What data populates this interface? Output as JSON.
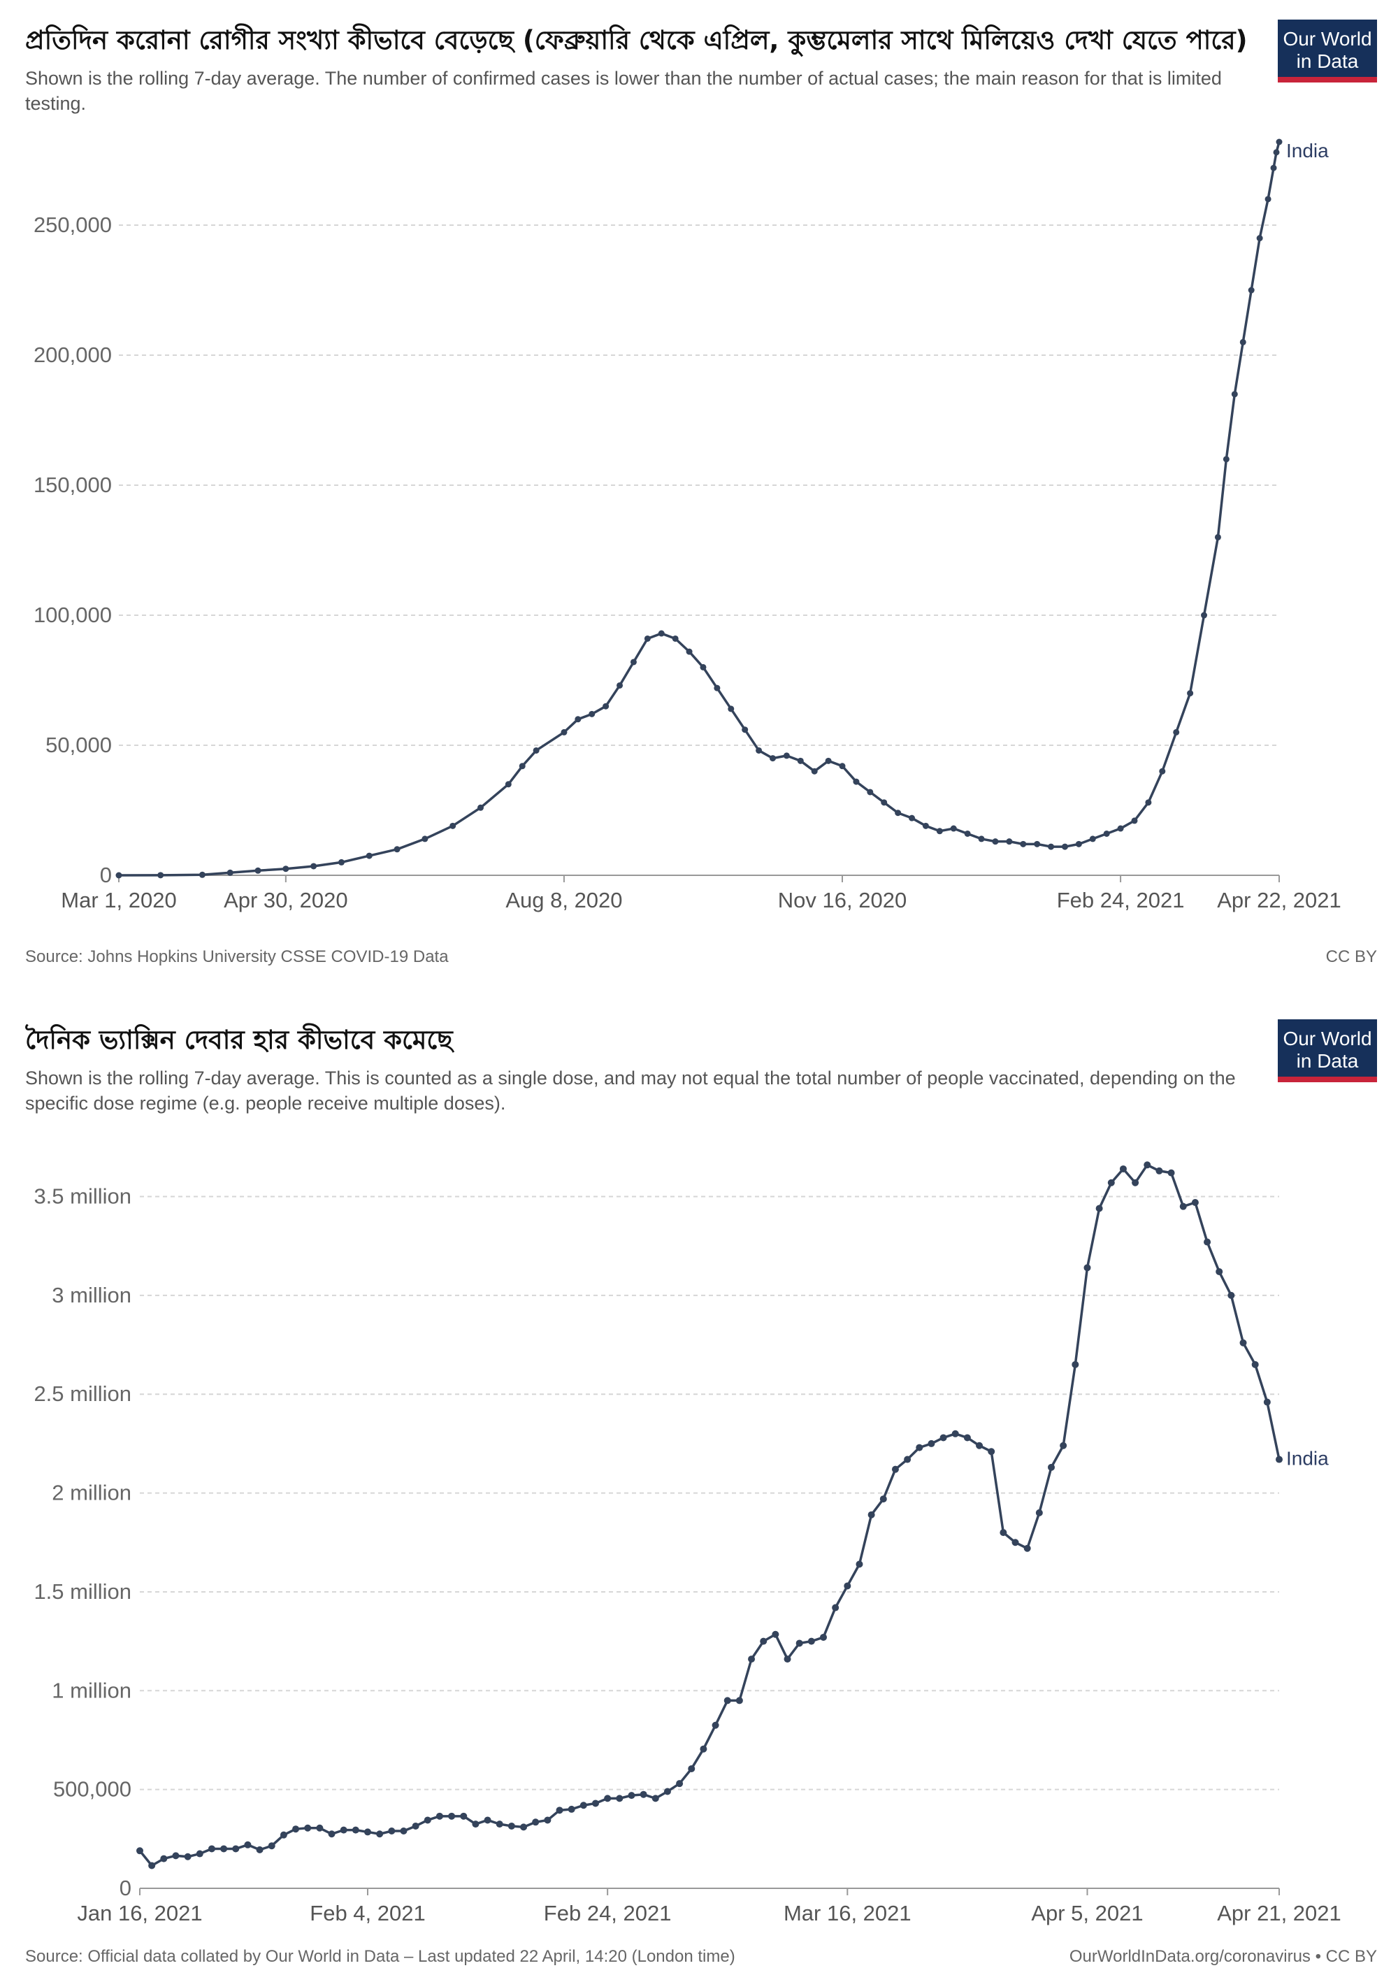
{
  "logo": {
    "line1": "Our World",
    "line2": "in Data"
  },
  "chart_data": [
    {
      "type": "line",
      "title": "প্রতিদিন করোনা রোগীর সংখ্যা কীভাবে বেড়েছে (ফেব্রুয়ারি থেকে এপ্রিল, কুম্ভমেলার সাথে মিলিয়েও দেখা যেতে পারে)",
      "subtitle": "Shown is the rolling 7-day average. The number of confirmed cases is lower than the number of actual cases; the main reason for that is limited testing.",
      "source": "Source: Johns Hopkins University CSSE COVID-19 Data",
      "license": "CC BY",
      "xlabel": "",
      "ylabel": "",
      "ylim": [
        0,
        282000
      ],
      "xlim": [
        0,
        417
      ],
      "yticks": [
        {
          "value": 0,
          "label": "0"
        },
        {
          "value": 50000,
          "label": "50,000"
        },
        {
          "value": 100000,
          "label": "100,000"
        },
        {
          "value": 150000,
          "label": "150,000"
        },
        {
          "value": 200000,
          "label": "200,000"
        },
        {
          "value": 250000,
          "label": "250,000"
        }
      ],
      "xticks": [
        {
          "value": 0,
          "label": "Mar 1, 2020"
        },
        {
          "value": 60,
          "label": "Apr 30, 2020"
        },
        {
          "value": 160,
          "label": "Aug 8, 2020"
        },
        {
          "value": 260,
          "label": "Nov 16, 2020"
        },
        {
          "value": 360,
          "label": "Feb 24, 2021"
        },
        {
          "value": 417,
          "label": "Apr 22, 2021"
        }
      ],
      "series": [
        {
          "name": "India",
          "x": [
            0,
            15,
            30,
            40,
            50,
            60,
            70,
            80,
            90,
            100,
            110,
            120,
            130,
            140,
            145,
            150,
            160,
            165,
            170,
            175,
            180,
            185,
            190,
            195,
            200,
            205,
            210,
            215,
            220,
            225,
            230,
            235,
            240,
            245,
            250,
            255,
            260,
            265,
            270,
            275,
            280,
            285,
            290,
            295,
            300,
            305,
            310,
            315,
            320,
            325,
            330,
            335,
            340,
            345,
            350,
            355,
            360,
            365,
            370,
            375,
            380,
            385,
            390,
            395,
            398,
            401,
            404,
            407,
            410,
            413,
            415,
            416,
            417
          ],
          "values": [
            0,
            50,
            200,
            1000,
            1800,
            2500,
            3500,
            5000,
            7500,
            10000,
            14000,
            19000,
            26000,
            35000,
            42000,
            48000,
            55000,
            60000,
            62000,
            65000,
            73000,
            82000,
            91000,
            93000,
            91000,
            86000,
            80000,
            72000,
            64000,
            56000,
            48000,
            45000,
            46000,
            44000,
            40000,
            44000,
            42000,
            36000,
            32000,
            28000,
            24000,
            22000,
            19000,
            17000,
            18000,
            16000,
            14000,
            13000,
            13000,
            12000,
            12000,
            11000,
            11000,
            12000,
            14000,
            16000,
            18000,
            21000,
            28000,
            40000,
            55000,
            70000,
            100000,
            130000,
            160000,
            185000,
            205000,
            225000,
            245000,
            260000,
            272000,
            278000,
            282000
          ]
        }
      ]
    },
    {
      "type": "line",
      "title": "দৈনিক ভ্যাক্সিন দেবার হার কীভাবে কমেছে",
      "subtitle": "Shown is the rolling 7-day average. This is counted as a single dose, and may not equal the total number of people vaccinated, depending on the specific dose regime (e.g. people receive multiple doses).",
      "source": "Source: Official data collated by Our World in Data – Last updated 22 April, 14:20 (London time)",
      "license": "OurWorldInData.org/coronavirus • CC BY",
      "xlabel": "",
      "ylabel": "",
      "ylim": [
        0,
        3700000
      ],
      "xlim": [
        0,
        95
      ],
      "yticks": [
        {
          "value": 0,
          "label": "0"
        },
        {
          "value": 500000,
          "label": "500,000"
        },
        {
          "value": 1000000,
          "label": "1 million"
        },
        {
          "value": 1500000,
          "label": "1.5 million"
        },
        {
          "value": 2000000,
          "label": "2 million"
        },
        {
          "value": 2500000,
          "label": "2.5 million"
        },
        {
          "value": 3000000,
          "label": "3 million"
        },
        {
          "value": 3500000,
          "label": "3.5 million"
        }
      ],
      "xticks": [
        {
          "value": 0,
          "label": "Jan 16, 2021"
        },
        {
          "value": 19,
          "label": "Feb 4, 2021"
        },
        {
          "value": 39,
          "label": "Feb 24, 2021"
        },
        {
          "value": 59,
          "label": "Mar 16, 2021"
        },
        {
          "value": 79,
          "label": "Apr 5, 2021"
        },
        {
          "value": 95,
          "label": "Apr 21, 2021"
        }
      ],
      "series": [
        {
          "name": "India",
          "x": [
            0,
            1,
            2,
            3,
            4,
            5,
            6,
            7,
            8,
            9,
            10,
            11,
            12,
            13,
            14,
            15,
            16,
            17,
            18,
            19,
            20,
            21,
            22,
            23,
            24,
            25,
            26,
            27,
            28,
            29,
            30,
            31,
            32,
            33,
            34,
            35,
            36,
            37,
            38,
            39,
            40,
            41,
            42,
            43,
            44,
            45,
            46,
            47,
            48,
            49,
            50,
            51,
            52,
            53,
            54,
            55,
            56,
            57,
            58,
            59,
            60,
            61,
            62,
            63,
            64,
            65,
            66,
            67,
            68,
            69,
            70,
            71,
            72,
            73,
            74,
            75,
            76,
            77,
            78,
            79,
            80,
            81,
            82,
            83,
            84,
            85,
            86,
            87,
            88,
            89,
            90,
            91,
            92,
            93,
            94,
            95
          ],
          "values": [
            190000,
            115000,
            150000,
            165000,
            160000,
            175000,
            200000,
            200000,
            200000,
            220000,
            195000,
            215000,
            270000,
            300000,
            305000,
            305000,
            275000,
            295000,
            295000,
            285000,
            275000,
            290000,
            290000,
            315000,
            345000,
            365000,
            365000,
            365000,
            325000,
            345000,
            325000,
            315000,
            310000,
            335000,
            345000,
            395000,
            400000,
            420000,
            430000,
            455000,
            455000,
            470000,
            475000,
            455000,
            490000,
            530000,
            605000,
            705000,
            825000,
            950000,
            950000,
            1160000,
            1250000,
            1285000,
            1160000,
            1240000,
            1250000,
            1270000,
            1420000,
            1530000,
            1640000,
            1890000,
            1970000,
            2120000,
            2170000,
            2230000,
            2250000,
            2280000,
            2300000,
            2280000,
            2240000,
            2210000,
            1800000,
            1750000,
            1720000,
            1900000,
            2130000,
            2240000,
            2650000,
            3140000,
            3440000,
            3570000,
            3640000,
            3570000,
            3660000,
            3630000,
            3620000,
            3450000,
            3470000,
            3270000,
            3120000,
            3000000,
            2760000,
            2650000,
            2460000,
            2170000
          ]
        }
      ]
    }
  ]
}
